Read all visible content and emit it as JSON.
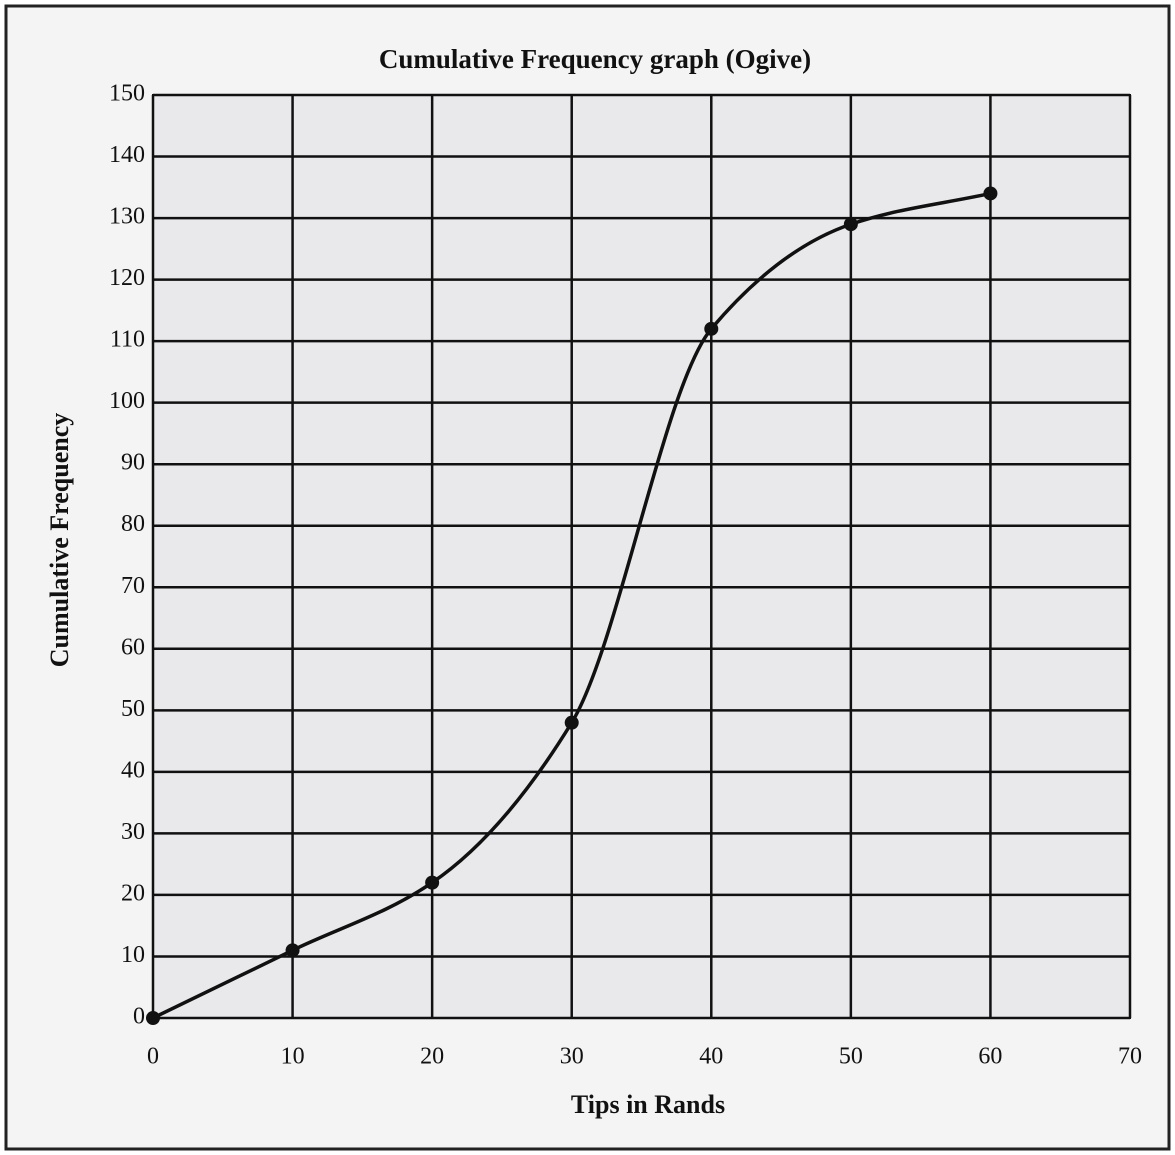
{
  "chart_data": {
    "type": "line",
    "title": "Cumulative Frequency graph (Ogive)",
    "x_label": "Tips in Rands",
    "y_label": "Cumulative Frequency",
    "x": [
      0,
      10,
      20,
      30,
      40,
      50,
      60
    ],
    "series": [
      {
        "name": "Cumulative Frequency",
        "color": "#111111",
        "values": [
          0,
          11,
          22,
          48,
          112,
          129,
          134
        ]
      }
    ],
    "xlim": [
      0,
      70
    ],
    "xticks": [
      0,
      10,
      20,
      30,
      40,
      50,
      60,
      70
    ],
    "ylim": [
      0,
      150
    ],
    "yticks": [
      0,
      10,
      20,
      30,
      40,
      50,
      60,
      70,
      80,
      90,
      100,
      110,
      120,
      130,
      140,
      150
    ],
    "grid": true
  }
}
